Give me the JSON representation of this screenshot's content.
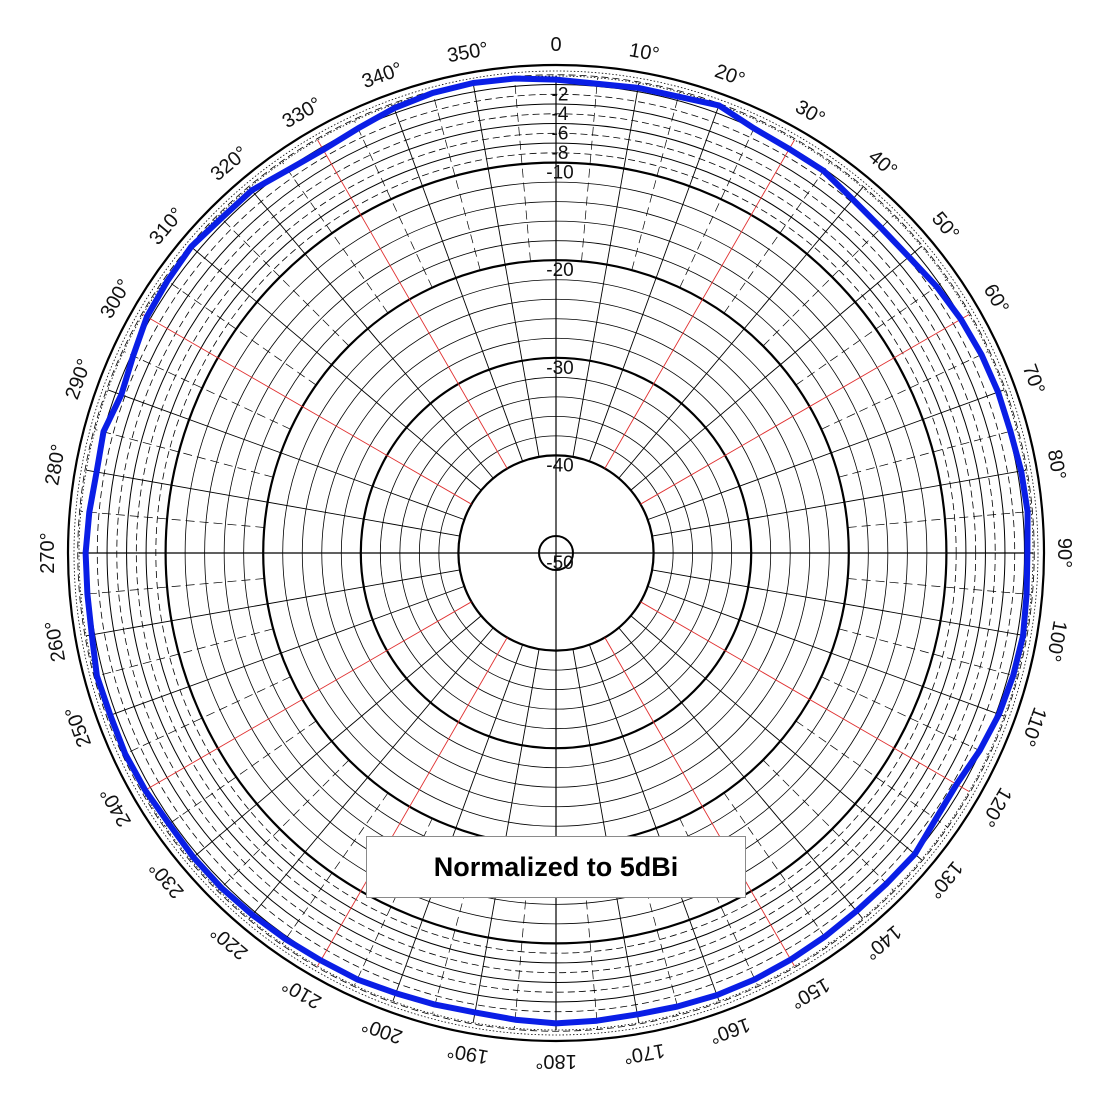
{
  "chart_data": {
    "type": "polar",
    "note": "Normalized to 5dBi",
    "angular_axis": {
      "labels": [
        "0",
        "10°",
        "20°",
        "30°",
        "40°",
        "50°",
        "60°",
        "70°",
        "80°",
        "90°",
        "100°",
        "110°",
        "120°",
        "130°",
        "140°",
        "150°",
        "160°",
        "170°",
        "180°",
        "190°",
        "200°",
        "210°",
        "220°",
        "230°",
        "240°",
        "250°",
        "260°",
        "270°",
        "280°",
        "290°",
        "300°",
        "310°",
        "320°",
        "330°",
        "340°",
        "350°"
      ],
      "major_step_deg": 30,
      "direction": "clockwise",
      "zero_at": "top"
    },
    "radial_axis": {
      "unit": "dB",
      "ring_values": [
        -2,
        -4,
        -6,
        -8,
        -10,
        -20,
        -30,
        -40,
        -50
      ],
      "ring_labels": [
        "-2",
        "-4",
        "-6",
        "-8",
        "-10",
        "-20",
        "-30",
        "-40",
        "-50"
      ],
      "rlim": [
        -50,
        0
      ]
    },
    "colors": {
      "trace": "#0a1ee6",
      "major_spoke": "#e03030",
      "grid": "#000000"
    },
    "series": [
      {
        "line_color": "#0a1ee6",
        "theta_deg": [
          0,
          10,
          20,
          25,
          30,
          35,
          40,
          45,
          50,
          55,
          60,
          65,
          70,
          75,
          80,
          85,
          90,
          95,
          100,
          105,
          110,
          115,
          120,
          125,
          130,
          135,
          140,
          145,
          150,
          155,
          160,
          165,
          170,
          175,
          180,
          185,
          190,
          195,
          200,
          205,
          210,
          215,
          220,
          225,
          230,
          235,
          240,
          245,
          250,
          255,
          260,
          265,
          270,
          275,
          280,
          285,
          290,
          295,
          300,
          305,
          310,
          315,
          320,
          325,
          330,
          335,
          340,
          345,
          350,
          355
        ],
        "r_db": [
          -1.5,
          -1.6,
          -1.2,
          -2.0,
          -2.2,
          -2.2,
          -2.7,
          -2.9,
          -2.8,
          -2.4,
          -2.1,
          -1.9,
          -1.8,
          -1.8,
          -1.6,
          -1.5,
          -1.7,
          -1.6,
          -1.4,
          -1.5,
          -1.7,
          -2.1,
          -2.6,
          -2.5,
          -2.0,
          -2.1,
          -2.1,
          -2.0,
          -1.9,
          -1.8,
          -1.8,
          -1.9,
          -2.0,
          -1.9,
          -1.8,
          -2.0,
          -2.2,
          -2.1,
          -2.0,
          -1.8,
          -1.8,
          -1.7,
          -1.6,
          -1.5,
          -1.5,
          -1.6,
          -1.4,
          -1.3,
          -1.4,
          -1.3,
          -1.7,
          -1.8,
          -1.8,
          -2.0,
          -2.2,
          -2.0,
          -2.6,
          -2.2,
          -1.6,
          -1.4,
          -1.2,
          -1.5,
          -1.5,
          -2.1,
          -2.3,
          -2.0,
          -1.5,
          -1.2,
          -1.1,
          -1.2
        ]
      }
    ]
  }
}
